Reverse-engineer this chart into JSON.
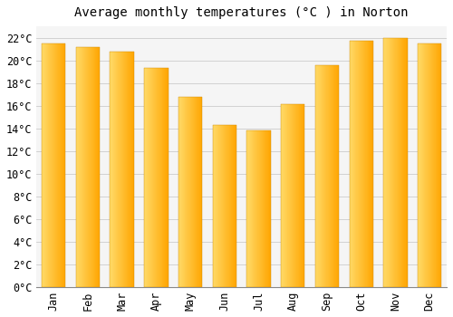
{
  "title": "Average monthly temperatures (°C ) in Norton",
  "months": [
    "Jan",
    "Feb",
    "Mar",
    "Apr",
    "May",
    "Jun",
    "Jul",
    "Aug",
    "Sep",
    "Oct",
    "Nov",
    "Dec"
  ],
  "values": [
    21.5,
    21.2,
    20.8,
    19.3,
    16.8,
    14.3,
    13.8,
    16.1,
    19.6,
    21.7,
    22.0,
    21.5
  ],
  "bar_color_left": "#FFD966",
  "bar_color_right": "#FFA500",
  "background_color": "#FFFFFF",
  "plot_bg_color": "#F5F5F5",
  "grid_color": "#CCCCCC",
  "ylim": [
    0,
    23
  ],
  "yticks": [
    0,
    2,
    4,
    6,
    8,
    10,
    12,
    14,
    16,
    18,
    20,
    22
  ],
  "title_fontsize": 10,
  "tick_fontsize": 8.5,
  "font_family": "monospace"
}
